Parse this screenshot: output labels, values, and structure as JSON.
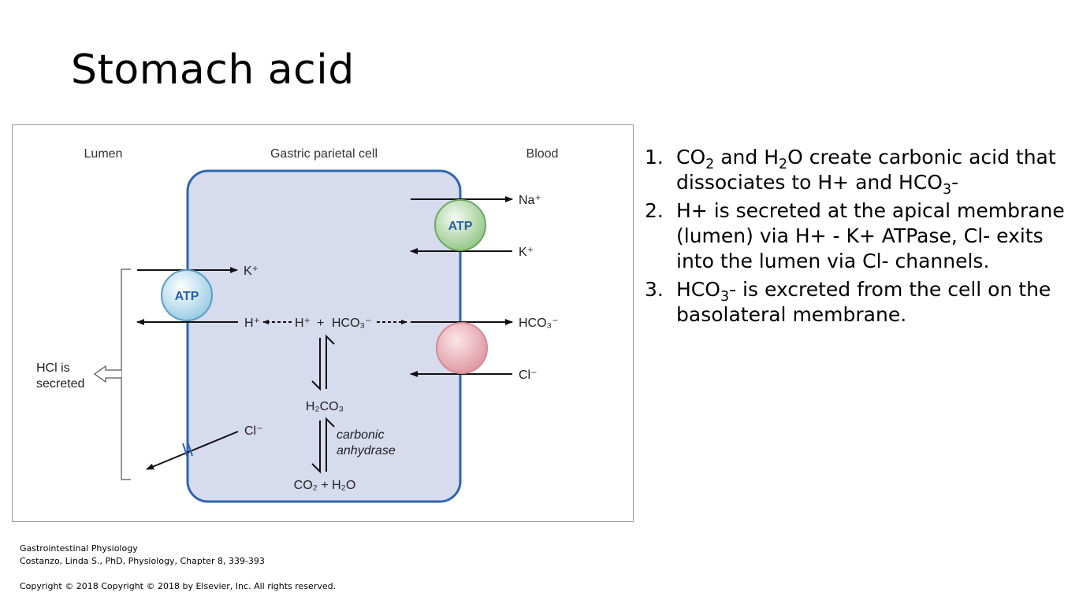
{
  "slide": {
    "title": "Stomach acid"
  },
  "diagram": {
    "lumen_label": "Lumen",
    "cell_label": "Gastric parietal cell",
    "blood_label": "Blood",
    "atp_label": "ATP",
    "na_label": "Na⁺",
    "k_label": "K⁺",
    "h_label": "H⁺",
    "h_inner": "H⁺",
    "plus": "+",
    "hco3_label": "HCO₃⁻",
    "cl_label": "Cl⁻",
    "h2co3_label": "H₂CO₃",
    "co2_h2o_label": "CO₂ + H₂O",
    "enzyme_line1": "carbonic",
    "enzyme_line2": "anhydrase",
    "hcl_line1": "HCl is",
    "hcl_line2": "secreted",
    "colors": {
      "cell_fill": "#d6dbee",
      "cell_border": "#2e66b0",
      "atp_apical": "#bfe4f2",
      "atp_basolateral": "#b8dcae",
      "exchanger": "#f2b8c0"
    }
  },
  "steps": [
    {
      "num": "1.",
      "parts": [
        "CO",
        "2",
        " and H",
        "2",
        "O create carbonic acid that dissociates to H+ and HCO",
        "3",
        "-"
      ]
    },
    {
      "num": "2.",
      "parts": [
        "H+ is secreted at the apical membrane (lumen) via H+ - K+ ATPase, Cl- exits into the lumen via Cl- channels."
      ]
    },
    {
      "num": "3.",
      "parts": [
        "HCO",
        "3",
        "- is excreted from the cell on the basolateral membrane."
      ]
    }
  ],
  "citation": {
    "line1": "Gastrointestinal Physiology",
    "line2": "Costanzo, Linda S., PhD, Physiology, Chapter 8, 339-393"
  },
  "copyright": "Copyright ©  2018   Copyright © 2018 by Elsevier, Inc. All rights reserved."
}
